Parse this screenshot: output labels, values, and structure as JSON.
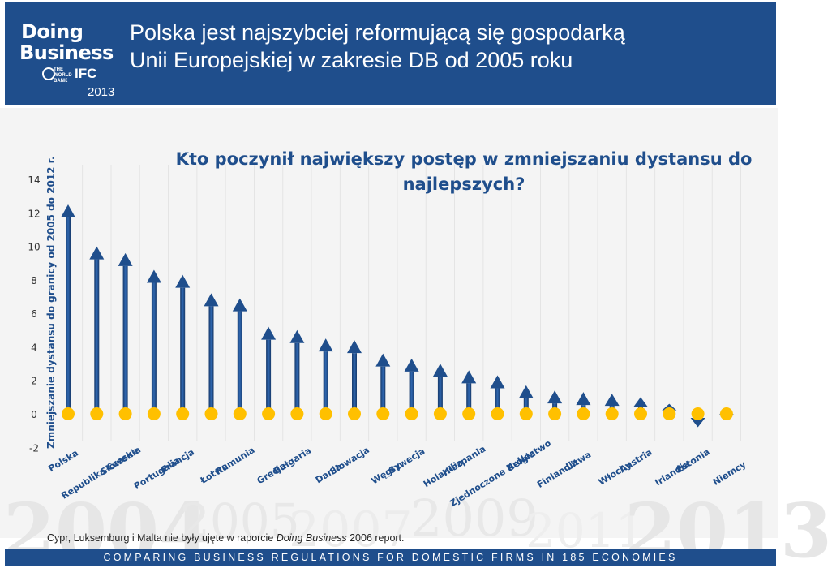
{
  "header": {
    "logo": {
      "line1": "Doing",
      "line2": "Business",
      "wb_text": "THE WORLD BANK",
      "ifc_text": "IFC",
      "year": "2013"
    },
    "title_line1": "Polska jest najszybciej reformującą się gospodarką",
    "title_line2": "Unii Europejskiej w zakresie DB od 2005 roku"
  },
  "background_years": [
    "2004",
    "2005",
    "2007",
    "2009",
    "2011",
    "2013"
  ],
  "colors": {
    "banner": "#1f4e8c",
    "arrow": "#1f4e8c",
    "baseline_dot": "#ffc000"
  },
  "chart_data": {
    "type": "bar",
    "title": "Kto poczynił największy postęp w zmniejszaniu dystansu do najlepszych?",
    "ylabel": "Zmniejszanie dystansu do granicy od 2005 do 2012 r.",
    "xlabel": "",
    "ylim": [
      -2,
      14
    ],
    "yticks": [
      -2,
      0,
      2,
      4,
      6,
      8,
      10,
      12,
      14
    ],
    "grid": true,
    "categories": [
      "Polska",
      "Republika Czeska",
      "Słowenia",
      "Portugalia",
      "Francja",
      "Łotwa",
      "Rumunia",
      "Grecja",
      "Bułgaria",
      "Dania",
      "Słowacja",
      "Węgry",
      "Szwecja",
      "Holandia",
      "Hiszpania",
      "Zjednoczone Królestwo",
      "Belgia",
      "Finlandia",
      "Litwa",
      "Włochy",
      "Austria",
      "Irlandia",
      "Estonia",
      "Niemcy"
    ],
    "values": [
      12.5,
      10.0,
      9.6,
      8.6,
      8.3,
      7.2,
      6.9,
      5.2,
      5.0,
      4.5,
      4.4,
      3.6,
      3.3,
      3.0,
      2.6,
      2.3,
      1.7,
      1.4,
      1.3,
      1.2,
      1.0,
      0.6,
      -0.8,
      -0.3
    ]
  },
  "footnote": {
    "prefix": "Cypr, Luksemburg i Malta nie były ujęte w raporcie ",
    "italic": "Doing Business",
    "suffix": " 2006 report."
  },
  "footer": "COMPARING BUSINESS REGULATIONS FOR DOMESTIC FIRMS IN 185 ECONOMIES"
}
